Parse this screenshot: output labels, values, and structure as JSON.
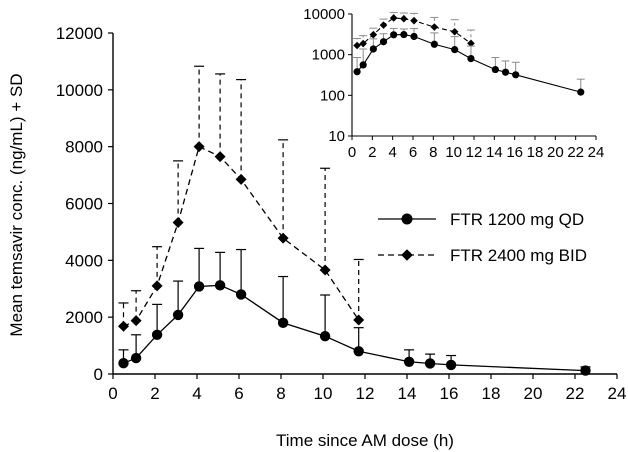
{
  "chart_data": [
    {
      "type": "line",
      "xlabel": "Time since AM dose (h)",
      "ylabel": "Mean temsavir conc. (ng/mL) + SD",
      "xlim": [
        0,
        24
      ],
      "ylim": [
        0,
        12000
      ],
      "x_ticks": [
        "0",
        "2",
        "4",
        "6",
        "8",
        "10",
        "12",
        "14",
        "16",
        "18",
        "20",
        "22",
        "24"
      ],
      "y_ticks": [
        "0",
        "2000",
        "4000",
        "6000",
        "8000",
        "10000",
        "12000"
      ],
      "legend_position": "right-middle",
      "series": [
        {
          "name": "FTR 1200 mg QD",
          "line_style": "solid",
          "marker": "circle",
          "color": "#000000",
          "x": [
            0.5,
            1.1,
            2.1,
            3.1,
            4.1,
            5.1,
            6.1,
            8.1,
            10.1,
            11.7,
            14.1,
            15.1,
            16.1,
            22.5
          ],
          "y": [
            380,
            560,
            1380,
            2080,
            3080,
            3120,
            2800,
            1800,
            1330,
            800,
            430,
            370,
            320,
            120
          ],
          "sd_upper": [
            850,
            1380,
            2450,
            3270,
            4420,
            4280,
            4380,
            3430,
            2780,
            1630,
            850,
            700,
            650,
            250
          ]
        },
        {
          "name": "FTR 2400 mg BID",
          "line_style": "dashed",
          "marker": "diamond",
          "color": "#000000",
          "x": [
            0.5,
            1.1,
            2.1,
            3.1,
            4.1,
            5.1,
            6.1,
            8.1,
            10.1,
            11.7
          ],
          "y": [
            1680,
            1880,
            3100,
            5330,
            8000,
            7650,
            6850,
            4780,
            3660,
            1900
          ],
          "sd_upper": [
            2500,
            2930,
            4480,
            7500,
            10830,
            10560,
            10360,
            8240,
            7240,
            4030
          ]
        }
      ]
    },
    {
      "type": "line",
      "inset": true,
      "log_scale_y": true,
      "xlim": [
        0,
        24
      ],
      "ylim": [
        10,
        10000
      ],
      "x_ticks": [
        "0",
        "2",
        "4",
        "6",
        "8",
        "10",
        "12",
        "14",
        "16",
        "18",
        "20",
        "22",
        "24"
      ],
      "y_ticks": [
        "10",
        "100",
        "1000",
        "10000"
      ],
      "series_ref": "same data as main chart, shown on log scale; error bars in gray"
    }
  ]
}
